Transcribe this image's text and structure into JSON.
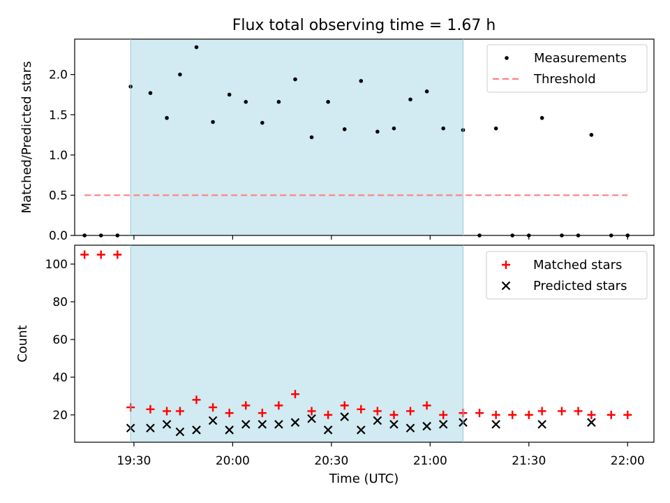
{
  "chart_data": {
    "type": "scatter",
    "title": "Flux total observing time = 1.67 h",
    "xlabel": "Time (UTC)",
    "x_ticks": [
      "19:30",
      "20:00",
      "20:30",
      "21:00",
      "21:30",
      "22:00"
    ],
    "x_range": [
      "19:12",
      "22:08"
    ],
    "observing_window": [
      "19:29",
      "21:10"
    ],
    "colors": {
      "window": "#add8e6",
      "threshold": "#ff7f7f",
      "matched": "#ff0000",
      "measurements": "#000000",
      "predicted": "#000000"
    },
    "top": {
      "ylabel": "Matched/Predicted stars",
      "ylim": [
        0,
        2.44
      ],
      "y_ticks": [
        0.0,
        0.5,
        1.0,
        1.5,
        2.0
      ],
      "legend": "top-right",
      "series": [
        {
          "name": "Measurements",
          "marker": "dot",
          "x": [
            "19:15",
            "19:20",
            "19:25",
            "19:29",
            "19:35",
            "19:40",
            "19:44",
            "19:49",
            "19:54",
            "19:59",
            "20:04",
            "20:09",
            "20:14",
            "20:19",
            "20:24",
            "20:29",
            "20:34",
            "20:39",
            "20:44",
            "20:49",
            "20:54",
            "20:59",
            "21:04",
            "21:10",
            "21:15",
            "21:20",
            "21:25",
            "21:30",
            "21:34",
            "21:40",
            "21:45",
            "21:49",
            "21:55",
            "22:00"
          ],
          "y": [
            0,
            0,
            0,
            1.85,
            1.77,
            1.46,
            2.0,
            2.34,
            1.41,
            1.75,
            1.66,
            1.4,
            1.66,
            1.94,
            1.22,
            1.66,
            1.32,
            1.92,
            1.29,
            1.33,
            1.69,
            1.79,
            1.33,
            1.31,
            0,
            1.33,
            0,
            0,
            1.46,
            0,
            0,
            1.25,
            0,
            0
          ]
        },
        {
          "name": "Threshold",
          "marker": "dashed-line",
          "x": [
            "19:15",
            "22:00"
          ],
          "y": [
            0.5,
            0.5
          ]
        }
      ]
    },
    "bottom": {
      "ylabel": "Count",
      "ylim": [
        5.5,
        110
      ],
      "y_ticks": [
        20,
        40,
        60,
        80,
        100
      ],
      "legend": "top-right",
      "series": [
        {
          "name": "Matched stars",
          "marker": "plus",
          "x": [
            "19:15",
            "19:20",
            "19:25",
            "19:29",
            "19:35",
            "19:40",
            "19:44",
            "19:49",
            "19:54",
            "19:59",
            "20:04",
            "20:09",
            "20:14",
            "20:19",
            "20:24",
            "20:29",
            "20:34",
            "20:39",
            "20:44",
            "20:49",
            "20:54",
            "20:59",
            "21:04",
            "21:10",
            "21:15",
            "21:20",
            "21:25",
            "21:30",
            "21:34",
            "21:40",
            "21:45",
            "21:49",
            "21:55",
            "22:00"
          ],
          "y": [
            105,
            105,
            105,
            24,
            23,
            22,
            22,
            28,
            24,
            21,
            25,
            21,
            25,
            31,
            22,
            20,
            25,
            23,
            22,
            20,
            22,
            25,
            20,
            21,
            21,
            20,
            20,
            20,
            22,
            22,
            22,
            20,
            20,
            20
          ]
        },
        {
          "name": "Predicted stars",
          "marker": "x",
          "x": [
            "19:29",
            "19:35",
            "19:40",
            "19:44",
            "19:49",
            "19:54",
            "19:59",
            "20:04",
            "20:09",
            "20:14",
            "20:19",
            "20:24",
            "20:29",
            "20:34",
            "20:39",
            "20:44",
            "20:49",
            "20:54",
            "20:59",
            "21:04",
            "21:10",
            "21:20",
            "21:34",
            "21:49"
          ],
          "y": [
            13,
            13,
            15,
            11,
            12,
            17,
            12,
            15,
            15,
            15,
            16,
            18,
            12,
            19,
            12,
            17,
            15,
            13,
            14,
            15,
            16,
            15,
            15,
            16
          ]
        }
      ]
    }
  }
}
